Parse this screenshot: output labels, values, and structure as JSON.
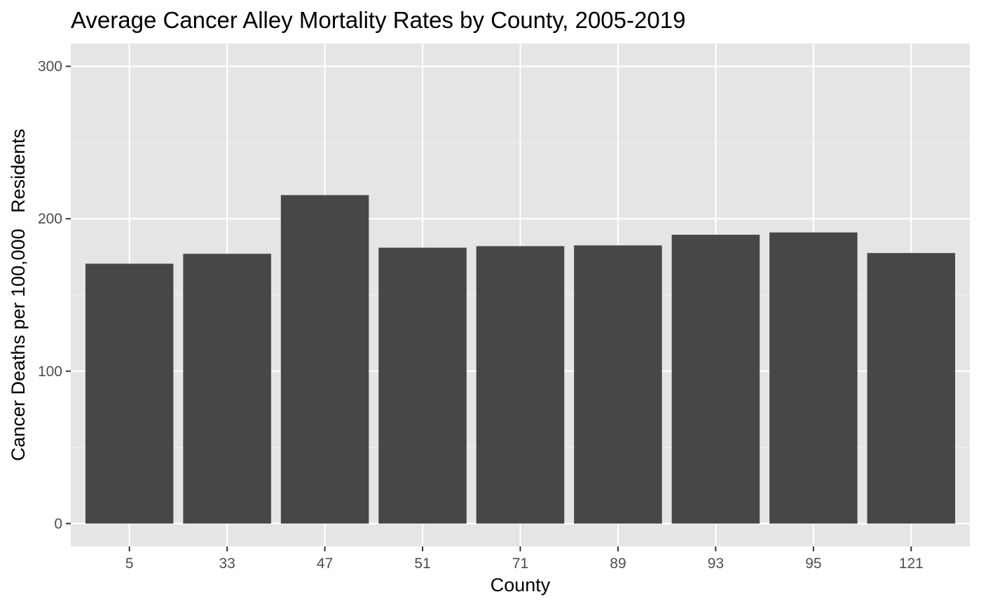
{
  "chart_data": {
    "type": "bar",
    "title": "Average Cancer Alley Mortality Rates by County, 2005-2019",
    "xlabel": "County",
    "ylabel": "Cancer Deaths per 100,000   Residents",
    "categories": [
      "5",
      "33",
      "47",
      "51",
      "71",
      "89",
      "93",
      "95",
      "121"
    ],
    "values": [
      170.5,
      177,
      215.5,
      181,
      182,
      182.5,
      189.5,
      191,
      177.5
    ],
    "ylim": [
      -15,
      315
    ],
    "yticks": [
      0,
      100,
      200,
      300
    ],
    "ytick_labels": [
      "0",
      "100",
      "200",
      "300"
    ],
    "grid": true,
    "legend": "none",
    "colors": {
      "bar": "#474747",
      "panel": "#e5e5e5",
      "grid_major": "#ffffff",
      "grid_minor": "#f2f2f2",
      "tick_text": "#4d4d4d",
      "tick_mark": "#333333"
    }
  }
}
